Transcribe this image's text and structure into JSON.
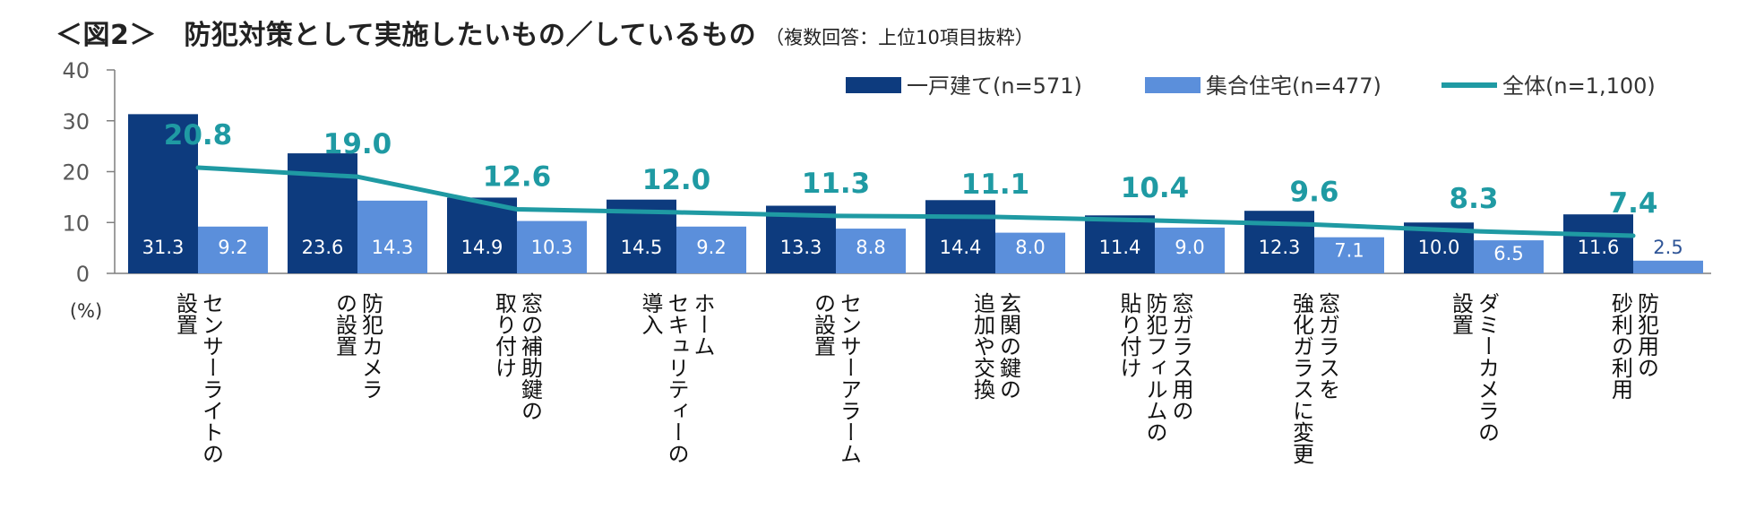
{
  "header": {
    "title": "＜図2＞　防犯対策として実施したいもの／しているもの",
    "subtitle": "（複数回答：上位10項目抜粋）"
  },
  "colors": {
    "house": "#0d3b7e",
    "apartment": "#5b8fdb",
    "total": "#1f9aa3"
  },
  "chart_data": {
    "type": "bar",
    "title": "＜図2＞　防犯対策として実施したいもの／しているもの",
    "subtitle": "（複数回答：上位10項目抜粋）",
    "ylabel": "(%)",
    "ylim": [
      0,
      40
    ],
    "yticks": [
      0,
      10,
      20,
      30,
      40
    ],
    "legend_position": "top-right",
    "categories": [
      "センサーライトの設置",
      "防犯カメラの設置",
      "窓の補助鍵の取り付け",
      "ホームセキュリティーの導入",
      "センサーアラームの設置",
      "玄関の鍵の追加や交換",
      "窓ガラス用防犯フィルムの貼り付け",
      "窓ガラスを強化ガラスに変更",
      "ダミーカメラの設置",
      "防犯用の砂利の利用"
    ],
    "category_lines": [
      [
        "センサーライトの",
        "設置"
      ],
      [
        "防犯カメラ",
        "の設置"
      ],
      [
        "窓の補助鍵の",
        "取り付け"
      ],
      [
        "ホーム",
        "セキュリティーの",
        "導入"
      ],
      [
        "センサーアラーム",
        "の設置"
      ],
      [
        "玄関の鍵の",
        "追加や交換"
      ],
      [
        "窓ガラス用の",
        "防犯フィルムの",
        "貼り付け"
      ],
      [
        "窓ガラスを",
        "強化ガラスに変更"
      ],
      [
        "ダミーカメラの",
        "設置"
      ],
      [
        "防犯用の",
        "砂利の利用"
      ]
    ],
    "series": [
      {
        "name": "一戸建て(n=571)",
        "kind": "bar",
        "values": [
          31.3,
          23.6,
          14.9,
          14.5,
          13.3,
          14.4,
          11.4,
          12.3,
          10.0,
          11.6
        ]
      },
      {
        "name": "集合住宅(n=477)",
        "kind": "bar",
        "values": [
          9.2,
          14.3,
          10.3,
          9.2,
          8.8,
          8.0,
          9.0,
          7.1,
          6.5,
          2.5
        ]
      },
      {
        "name": "全体(n=1,100)",
        "kind": "line",
        "values": [
          20.8,
          19.0,
          12.6,
          12.0,
          11.3,
          11.1,
          10.4,
          9.6,
          8.3,
          7.4
        ]
      }
    ],
    "value_labels": {
      "house": [
        "31.3",
        "23.6",
        "14.9",
        "14.5",
        "13.3",
        "14.4",
        "11.4",
        "12.3",
        "10.0",
        "11.6"
      ],
      "apartment": [
        "9.2",
        "14.3",
        "10.3",
        "9.2",
        "8.8",
        "8.0",
        "9.0",
        "7.1",
        "6.5",
        "2.5"
      ],
      "total": [
        "20.8",
        "19.0",
        "12.6",
        "12.0",
        "11.3",
        "11.1",
        "10.4",
        "9.6",
        "8.3",
        "7.4"
      ]
    }
  }
}
